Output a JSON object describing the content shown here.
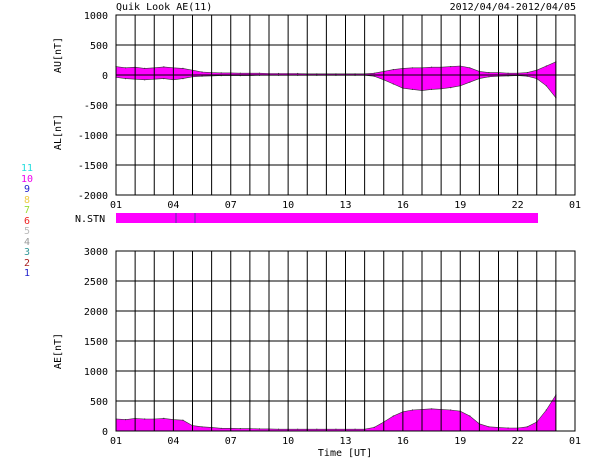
{
  "header": {
    "title": "Quik Look AE(11)",
    "date_range": "2012/04/04-2012/04/05"
  },
  "x_ticks": [
    "01",
    "04",
    "07",
    "10",
    "13",
    "16",
    "19",
    "22",
    "01"
  ],
  "x_axis_label": "Time [UT]",
  "station_label": "N.STN",
  "station_legend": [
    {
      "label": "11",
      "color": "#22dddd"
    },
    {
      "label": "10",
      "color": "#ee00ee"
    },
    {
      "label": "9",
      "color": "#2222cc"
    },
    {
      "label": "8",
      "color": "#eecc44"
    },
    {
      "label": "7",
      "color": "#99dd33"
    },
    {
      "label": "6",
      "color": "#ee2222"
    },
    {
      "label": "5",
      "color": "#bbbbbb"
    },
    {
      "label": "4",
      "color": "#999999"
    },
    {
      "label": "3",
      "color": "#339999"
    },
    {
      "label": "2",
      "color": "#aa2222"
    },
    {
      "label": "1",
      "color": "#2222cc"
    }
  ],
  "colors": {
    "fill": "#ff00ff",
    "grid": "#000000",
    "stn_marker": "#5533aa"
  },
  "chart_data": [
    {
      "type": "area",
      "ylabels": [
        "AU[nT]",
        "AL[nT]"
      ],
      "ylim": [
        -2000,
        1000
      ],
      "y_ticks": [
        1000,
        500,
        0,
        -500,
        -1000,
        -1500,
        -2000
      ],
      "grid": true,
      "x_hours": [
        0,
        0.5,
        1,
        1.5,
        2,
        2.5,
        3,
        3.5,
        4,
        4.5,
        5,
        5.5,
        6,
        6.5,
        7,
        7.5,
        8,
        8.5,
        9,
        9.5,
        10,
        10.5,
        11,
        11.5,
        12,
        12.5,
        13,
        13.5,
        14,
        14.5,
        15,
        15.5,
        16,
        16.5,
        17,
        17.5,
        18,
        18.5,
        19,
        19.5,
        20,
        20.5,
        21,
        21.5,
        22,
        22.5,
        23
      ],
      "series": [
        {
          "values": [
            140,
            120,
            130,
            110,
            120,
            135,
            120,
            110,
            80,
            50,
            40,
            35,
            35,
            30,
            30,
            30,
            25,
            25,
            25,
            25,
            20,
            20,
            20,
            20,
            20,
            20,
            20,
            30,
            60,
            90,
            110,
            120,
            120,
            130,
            130,
            140,
            150,
            120,
            60,
            40,
            40,
            30,
            30,
            40,
            80,
            150,
            220
          ]
        },
        {
          "values": [
            -40,
            -60,
            -70,
            -80,
            -70,
            -60,
            -80,
            -60,
            -30,
            -20,
            -15,
            -10,
            -10,
            -10,
            -10,
            -5,
            -5,
            -5,
            -5,
            -5,
            -5,
            -5,
            -5,
            -5,
            -5,
            -5,
            -5,
            -20,
            -80,
            -150,
            -220,
            -240,
            -260,
            -240,
            -230,
            -210,
            -180,
            -120,
            -60,
            -30,
            -20,
            -15,
            -10,
            -20,
            -60,
            -180,
            -380
          ]
        }
      ]
    },
    {
      "type": "area",
      "ylabel": "AE[nT]",
      "ylim": [
        0,
        3000
      ],
      "y_ticks": [
        3000,
        2500,
        2000,
        1500,
        1000,
        500,
        0
      ],
      "grid": true,
      "x_hours": [
        0,
        0.5,
        1,
        1.5,
        2,
        2.5,
        3,
        3.5,
        4,
        4.5,
        5,
        5.5,
        6,
        6.5,
        7,
        7.5,
        8,
        8.5,
        9,
        9.5,
        10,
        10.5,
        11,
        11.5,
        12,
        12.5,
        13,
        13.5,
        14,
        14.5,
        15,
        15.5,
        16,
        16.5,
        17,
        17.5,
        18,
        18.5,
        19,
        19.5,
        20,
        20.5,
        21,
        21.5,
        22,
        22.5,
        23
      ],
      "series": [
        {
          "values": [
            200,
            190,
            210,
            200,
            200,
            210,
            190,
            180,
            90,
            70,
            60,
            45,
            45,
            40,
            40,
            35,
            35,
            30,
            30,
            30,
            30,
            30,
            30,
            30,
            30,
            30,
            30,
            60,
            150,
            250,
            320,
            350,
            360,
            370,
            360,
            350,
            330,
            250,
            120,
            70,
            60,
            50,
            50,
            70,
            150,
            350,
            600
          ]
        }
      ]
    }
  ]
}
